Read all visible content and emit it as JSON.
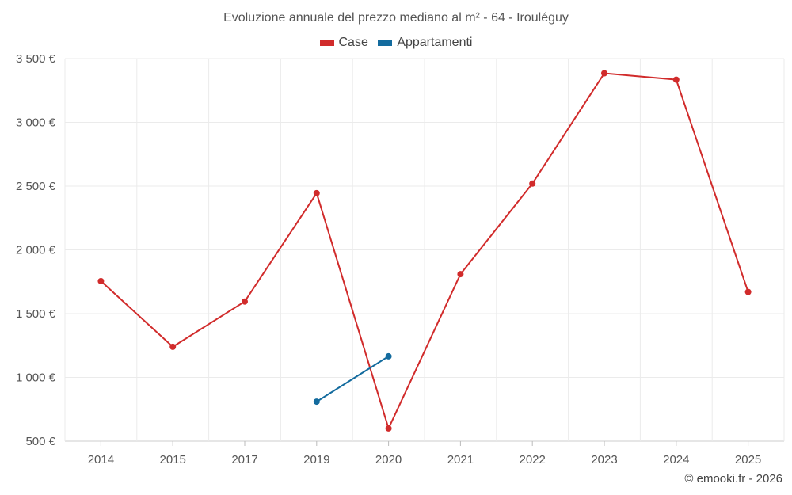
{
  "chart_data": {
    "type": "line",
    "title": "Evoluzione annuale del prezzo mediano al m² - 64 - Irouléguy",
    "categories": [
      "2014",
      "2015",
      "2017",
      "2019",
      "2020",
      "2021",
      "2022",
      "2023",
      "2024",
      "2025"
    ],
    "series": [
      {
        "name": "Case",
        "color": "#d12b2b",
        "values": [
          1755,
          1240,
          1595,
          2445,
          600,
          1810,
          2520,
          3385,
          3335,
          1670
        ]
      },
      {
        "name": "Appartamenti",
        "color": "#136b9e",
        "values": [
          null,
          null,
          null,
          810,
          1165,
          null,
          null,
          null,
          null,
          null
        ]
      }
    ],
    "y_ticks": [
      500,
      1000,
      1500,
      2000,
      2500,
      3000,
      3500
    ],
    "y_tick_labels": [
      "500 €",
      "1 000 €",
      "1 500 €",
      "2 000 €",
      "2 500 €",
      "3 000 €",
      "3 500 €"
    ],
    "ylim": [
      500,
      3500
    ],
    "xlabel": "",
    "ylabel": "",
    "grid": true,
    "legend_position": "top-center"
  },
  "credit": "© emooki.fr - 2026"
}
